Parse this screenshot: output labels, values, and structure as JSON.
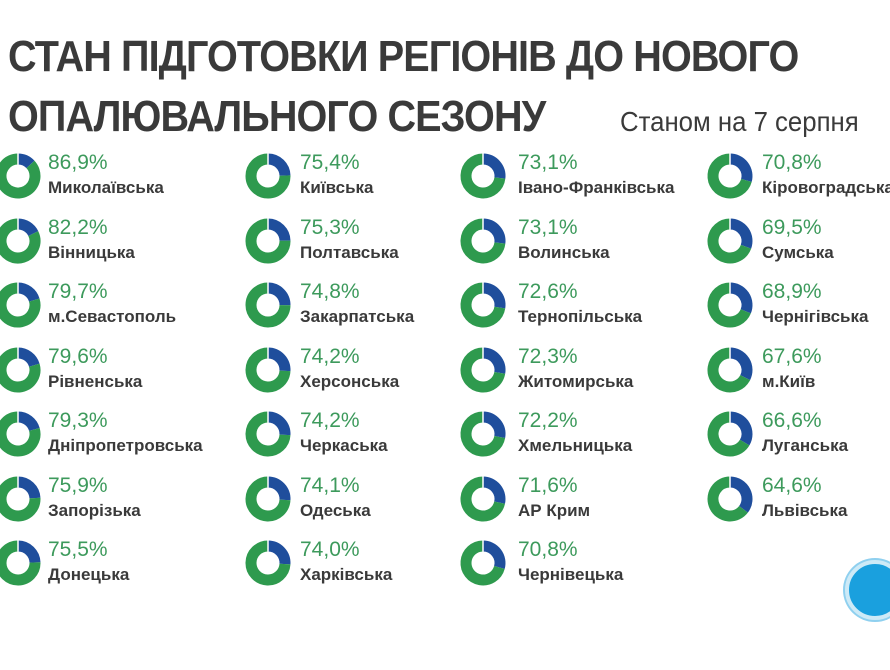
{
  "chart_data": {
    "type": "donut-grid",
    "title": "СТАН ПІДГОТОВКИ РЕГІОНІВ ДО НОВОГО ОПАЛЮВАЛЬНОГО СЕЗОНУ",
    "title_line1": "СТАН ПІДГОТОВКИ РЕГІОНІВ ДО НОВОГО",
    "title_line2": "ОПАЛЮВАЛЬНОГО СЕЗОНУ",
    "subtitle": "Станом на 7 серпня",
    "colors": {
      "done": "#2e9a4e",
      "remaining": "#1f4e9c",
      "percent_text": "#3d9a5c"
    },
    "columns": [
      [
        {
          "label": "86,9%",
          "value": 86.9,
          "name": "Миколаївська"
        },
        {
          "label": "82,2%",
          "value": 82.2,
          "name": "Вінницька"
        },
        {
          "label": "79,7%",
          "value": 79.7,
          "name": "м.Севастополь"
        },
        {
          "label": "79,6%",
          "value": 79.6,
          "name": "Рівненська"
        },
        {
          "label": "79,3%",
          "value": 79.3,
          "name": "Дніпропетровська"
        },
        {
          "label": "75,9%",
          "value": 75.9,
          "name": "Запорізька"
        },
        {
          "label": "75,5%",
          "value": 75.5,
          "name": "Донецька"
        }
      ],
      [
        {
          "label": "75,4%",
          "value": 75.4,
          "name": "Київська"
        },
        {
          "label": "75,3%",
          "value": 75.3,
          "name": "Полтавська"
        },
        {
          "label": "74,8%",
          "value": 74.8,
          "name": "Закарпатська"
        },
        {
          "label": "74,2%",
          "value": 74.2,
          "name": "Херсонська"
        },
        {
          "label": "74,2%",
          "value": 74.2,
          "name": "Черкаська"
        },
        {
          "label": "74,1%",
          "value": 74.1,
          "name": "Одеська"
        },
        {
          "label": "74,0%",
          "value": 74.0,
          "name": "Харківська"
        }
      ],
      [
        {
          "label": "73,1%",
          "value": 73.1,
          "name": "Івано-Франківська"
        },
        {
          "label": "73,1%",
          "value": 73.1,
          "name": "Волинська"
        },
        {
          "label": "72,6%",
          "value": 72.6,
          "name": "Тернопільська"
        },
        {
          "label": "72,3%",
          "value": 72.3,
          "name": "Житомирська"
        },
        {
          "label": "72,2%",
          "value": 72.2,
          "name": "Хмельницька"
        },
        {
          "label": "71,6%",
          "value": 71.6,
          "name": "АР Крим"
        },
        {
          "label": "70,8%",
          "value": 70.8,
          "name": "Чернівецька"
        }
      ],
      [
        {
          "label": "70,8%",
          "value": 70.8,
          "name": "Кіровоградська"
        },
        {
          "label": "69,5%",
          "value": 69.5,
          "name": "Сумська"
        },
        {
          "label": "68,9%",
          "value": 68.9,
          "name": "Чернігівська"
        },
        {
          "label": "67,6%",
          "value": 67.6,
          "name": "м.Київ"
        },
        {
          "label": "66,6%",
          "value": 66.6,
          "name": "Луганська"
        },
        {
          "label": "64,6%",
          "value": 64.6,
          "name": "Львівська"
        }
      ]
    ]
  }
}
